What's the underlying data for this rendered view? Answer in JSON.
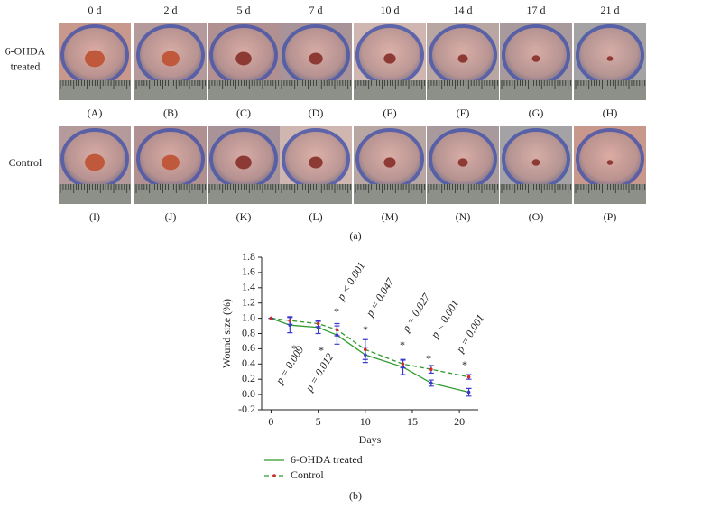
{
  "figure": {
    "columns": [
      "0 d",
      "2 d",
      "5 d",
      "7 d",
      "10 d",
      "14 d",
      "17 d",
      "21 d"
    ],
    "rows": [
      {
        "label": [
          "6-OHDA",
          "treated"
        ],
        "panels": [
          "(A)",
          "(B)",
          "(C)",
          "(D)",
          "(E)",
          "(F)",
          "(G)",
          "(H)"
        ]
      },
      {
        "label": [
          "Control"
        ],
        "panels": [
          "(I)",
          "(J)",
          "(K)",
          "(L)",
          "(M)",
          "(N)",
          "(O)",
          "(P)"
        ]
      }
    ],
    "caption": "(a)"
  },
  "chart_data": {
    "type": "line",
    "caption": "(b)",
    "xlabel": "Days",
    "ylabel": "Wound size (%)",
    "x": [
      0,
      2,
      5,
      7,
      10,
      14,
      17,
      21
    ],
    "series": [
      {
        "name": "6-OHDA treated",
        "color": "#2e9a2e",
        "marker_color": "#3a3ad0",
        "dashed": false,
        "values": [
          1.0,
          0.91,
          0.88,
          0.78,
          0.52,
          0.36,
          0.15,
          0.03
        ],
        "errors": [
          0,
          0.1,
          0.08,
          0.12,
          0.1,
          0.1,
          0.04,
          0.05
        ]
      },
      {
        "name": "Control",
        "color": "#2e9a2e",
        "marker_color": "#d02a2a",
        "dashed": true,
        "values": [
          1.0,
          0.97,
          0.93,
          0.85,
          0.59,
          0.4,
          0.33,
          0.23
        ],
        "errors": [
          0,
          0.05,
          0.04,
          0.08,
          0.13,
          0.05,
          0.05,
          0.03
        ]
      }
    ],
    "error_color": "#3a3ad0",
    "xlim": [
      -1,
      22
    ],
    "xticks": [
      0,
      5,
      10,
      15,
      20
    ],
    "ylim": [
      -0.2,
      1.8
    ],
    "yticks": [
      -0.2,
      {
        "value": 0,
        "label": "0.0"
      },
      0.2,
      0.4,
      0.6,
      0.8,
      {
        "value": 1,
        "label": "1.0"
      },
      1.2,
      1.4,
      1.6,
      1.8
    ],
    "annotations": [
      "p = 0.009",
      "p = 0.012",
      "p < 0.001",
      "p = 0.047",
      "p = 0.027",
      "p < 0.001",
      "p = 0.001"
    ],
    "significance_marker": "*"
  }
}
